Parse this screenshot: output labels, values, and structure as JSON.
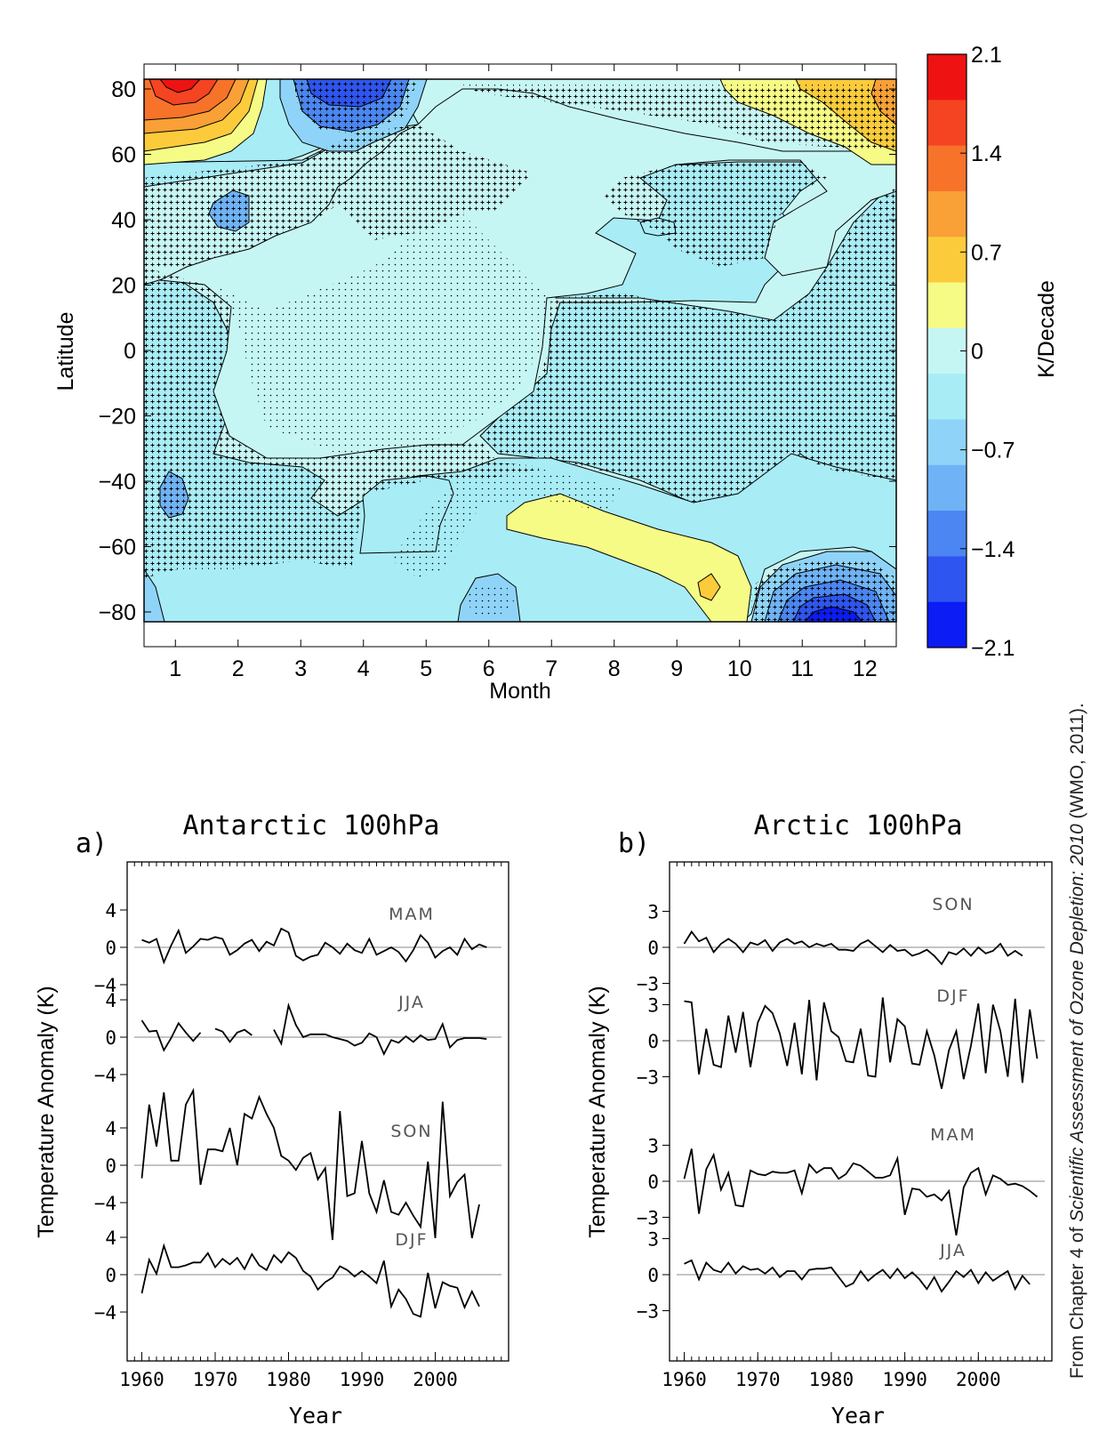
{
  "colors": {
    "cbar": [
      "#0b1cf5",
      "#2f55f0",
      "#4b86f2",
      "#6fb2f6",
      "#8fd4f8",
      "#a8ecf6",
      "#c6f6f3",
      "#f6fb86",
      "#fbcb3c",
      "#f9a037",
      "#f7732a",
      "#f44421",
      "#ef1212"
    ],
    "field_light": "#c6f6f3",
    "field_mid": "#a8ecf6",
    "field_blue": "#6fb2f6",
    "field_yellow": "#f6fb86"
  },
  "source_note": {
    "prefix": "From Chapter 4 of ",
    "italic": "Scientific Assessment of Ozone Depletion: 2010",
    "suffix": " (WMO, 2011)."
  },
  "chart_data": [
    {
      "type": "heatmap",
      "xlabel": "Month",
      "ylabel": "Latitude",
      "xticks": [
        "1",
        "2",
        "3",
        "4",
        "5",
        "6",
        "7",
        "8",
        "9",
        "10",
        "11",
        "12"
      ],
      "yticks": [
        "80",
        "60",
        "40",
        "20",
        "0",
        "−20",
        "−40",
        "−60",
        "−80"
      ],
      "xlim": [
        0.5,
        12.5
      ],
      "ylim": [
        -83,
        83
      ],
      "colorbar": {
        "label": "K/Decade",
        "ticks": [
          "2.1",
          "1.4",
          "0.7",
          "0",
          "−0.7",
          "−1.4",
          "−2.1"
        ],
        "range": [
          -2.1,
          2.1
        ],
        "levels": 12
      },
      "regions": [
        {
          "name": "Arctic January warming",
          "value": 2.0,
          "month": 1,
          "lat": 78
        },
        {
          "name": "Arctic March cooling",
          "value": -1.6,
          "month": 3.9,
          "lat": 80
        },
        {
          "name": "Arctic November-December warming",
          "value": 1.1,
          "month": 12,
          "lat": 75
        },
        {
          "name": "Antarctic November cooling",
          "value": -2.0,
          "month": 11.3,
          "lat": -78
        },
        {
          "name": "Southern winter warming",
          "value": 0.3,
          "month": 8.5,
          "lat": -60
        }
      ]
    },
    {
      "type": "line",
      "panel_label": "a)",
      "title": "Antarctic 100hPa",
      "xlabel": "Year",
      "ylabel": "Temperature Anomaly (K)",
      "xticks": [
        "1960",
        "1970",
        "1980",
        "1990",
        "2000"
      ],
      "xlim": [
        1958,
        2010
      ],
      "x_start": 1960,
      "series": [
        {
          "name": "MAM",
          "yticks": [
            "4",
            "0",
            "−4"
          ],
          "values": [
            0.8,
            0.5,
            0.9,
            -1.6,
            0.2,
            1.8,
            -0.6,
            0.1,
            0.9,
            0.8,
            1.1,
            0.9,
            -0.8,
            -0.3,
            0.4,
            0.8,
            -0.4,
            0.6,
            0.2,
            2.0,
            1.6,
            -0.9,
            -1.4,
            -1.0,
            -0.8,
            0.5,
            0.0,
            -0.7,
            0.4,
            -0.3,
            -0.6,
            0.9,
            -0.8,
            -0.4,
            0.0,
            -0.5,
            -1.5,
            -0.3,
            1.3,
            0.5,
            -1.1,
            -0.4,
            0.0,
            -0.8,
            0.9,
            -0.2,
            0.3,
            0.0
          ]
        },
        {
          "name": "JJA",
          "yticks": [
            "4",
            "0",
            "−4"
          ],
          "values": [
            1.8,
            0.6,
            0.7,
            -1.4,
            -0.1,
            1.5,
            0.5,
            -0.4,
            0.5,
            null,
            0.9,
            0.6,
            -0.5,
            0.5,
            0.8,
            0.2,
            null,
            null,
            0.8,
            -0.7,
            3.4,
            1.3,
            0.0,
            0.3,
            0.3,
            0.3,
            0.0,
            -0.2,
            -0.4,
            -0.9,
            -0.6,
            0.4,
            0.0,
            -1.8,
            -0.3,
            -0.6,
            0.1,
            -0.5,
            0.2,
            -0.3,
            -0.2,
            1.4,
            -1.1,
            -0.3,
            -0.1,
            -0.1,
            -0.1,
            -0.2
          ]
        },
        {
          "name": "SON",
          "yticks": [
            "4",
            "0",
            "−4"
          ],
          "values": [
            -1.4,
            6.5,
            2.0,
            7.8,
            0.5,
            0.5,
            6.5,
            8.0,
            -2.1,
            1.7,
            1.7,
            1.5,
            4.0,
            0.0,
            5.5,
            5.0,
            7.3,
            5.5,
            4.0,
            1.0,
            0.5,
            -0.5,
            0.8,
            1.3,
            -1.5,
            -0.3,
            -8.0,
            5.8,
            -3.3,
            -3.0,
            2.6,
            -3.0,
            -5.0,
            -1.6,
            -5.0,
            -5.3,
            -4.0,
            -5.4,
            -6.6,
            0.4,
            -7.8,
            6.8,
            -3.3,
            -1.8,
            -1.0,
            -7.8,
            -4.2
          ]
        },
        {
          "name": "DJF",
          "yticks": [
            "4",
            "0",
            "−4"
          ],
          "values": [
            -2.0,
            1.6,
            0.1,
            3.1,
            0.8,
            0.8,
            1.0,
            1.3,
            1.3,
            2.3,
            0.8,
            1.7,
            1.1,
            1.8,
            0.6,
            2.2,
            1.0,
            0.5,
            2.1,
            1.3,
            2.4,
            1.8,
            0.4,
            -0.2,
            -1.6,
            -0.8,
            -0.3,
            0.9,
            0.5,
            -0.2,
            0.4,
            -0.2,
            -0.9,
            1.5,
            -3.4,
            -1.6,
            -2.6,
            -4.2,
            -4.5,
            0.2,
            -3.6,
            -0.8,
            -1.2,
            -1.4,
            -3.5,
            -1.8,
            -3.4
          ]
        }
      ]
    },
    {
      "type": "line",
      "panel_label": "b)",
      "title": "Arctic 100hPa",
      "xlabel": "Year",
      "ylabel": "Temperature Anomaly (K)",
      "xticks": [
        "1960",
        "1970",
        "1980",
        "1990",
        "2000"
      ],
      "xlim": [
        1958,
        2010
      ],
      "x_start": 1960,
      "series": [
        {
          "name": "SON",
          "yticks": [
            "3",
            "0",
            "−3"
          ],
          "values": [
            0.3,
            1.3,
            0.5,
            0.8,
            -0.4,
            0.3,
            0.7,
            0.3,
            -0.4,
            0.4,
            0.2,
            0.6,
            -0.3,
            0.4,
            0.7,
            0.3,
            0.5,
            0.0,
            0.3,
            0.1,
            0.3,
            -0.2,
            -0.2,
            -0.3,
            0.3,
            0.6,
            0.1,
            -0.4,
            0.2,
            -0.3,
            -0.2,
            -0.7,
            -0.5,
            -0.2,
            -0.7,
            -1.4,
            -0.4,
            -0.6,
            -0.1,
            -0.7,
            0.0,
            -0.5,
            -0.3,
            0.3,
            -0.7,
            -0.3,
            -0.7
          ]
        },
        {
          "name": "DJF",
          "yticks": [
            "3",
            "0",
            "−3"
          ],
          "values": [
            3.3,
            3.2,
            -2.8,
            1.0,
            -2.0,
            -2.2,
            2.1,
            -1.0,
            2.4,
            -2.2,
            1.5,
            2.9,
            2.3,
            0.6,
            -2.1,
            1.5,
            -2.8,
            3.4,
            -3.3,
            3.2,
            0.8,
            0.3,
            -1.7,
            -1.8,
            1.0,
            -2.9,
            -3.0,
            3.6,
            -1.8,
            1.8,
            1.2,
            -1.9,
            -2.0,
            0.8,
            -1.2,
            -4.0,
            -0.8,
            0.8,
            -3.2,
            -0.4,
            3.1,
            -2.7,
            3.0,
            0.8,
            -3.0,
            3.5,
            -3.5,
            2.6,
            -1.5
          ]
        },
        {
          "name": "MAM",
          "yticks": [
            "3",
            "0",
            "−3"
          ],
          "values": [
            0.2,
            2.7,
            -2.7,
            1.0,
            2.2,
            -0.7,
            0.7,
            -2.0,
            -2.1,
            0.9,
            0.6,
            0.5,
            0.8,
            0.7,
            0.7,
            0.9,
            -1.0,
            1.4,
            0.7,
            1.1,
            1.1,
            0.2,
            0.6,
            1.5,
            1.3,
            0.8,
            0.3,
            0.3,
            0.5,
            1.9,
            -2.8,
            -0.6,
            -0.7,
            -1.3,
            -1.1,
            -1.6,
            -0.8,
            -4.5,
            -0.5,
            0.7,
            1.1,
            -1.1,
            0.5,
            0.2,
            -0.3,
            -0.2,
            -0.4,
            -0.8,
            -1.3
          ]
        },
        {
          "name": "JJA",
          "yticks": [
            "3",
            "0",
            "−3"
          ],
          "values": [
            0.9,
            1.2,
            -0.4,
            1.0,
            0.4,
            0.2,
            1.0,
            0.1,
            0.7,
            0.4,
            0.5,
            0.1,
            0.6,
            -0.2,
            0.3,
            0.3,
            -0.4,
            0.4,
            0.5,
            0.5,
            0.6,
            -0.2,
            -1.0,
            -0.7,
            0.3,
            -0.5,
            0.0,
            0.4,
            -0.3,
            0.5,
            -0.3,
            0.2,
            -0.4,
            -1.2,
            -0.2,
            -1.4,
            -0.6,
            0.3,
            -0.2,
            0.4,
            -0.7,
            0.2,
            -0.5,
            -0.1,
            0.3,
            -1.2,
            -0.1,
            -0.8
          ]
        }
      ]
    }
  ]
}
